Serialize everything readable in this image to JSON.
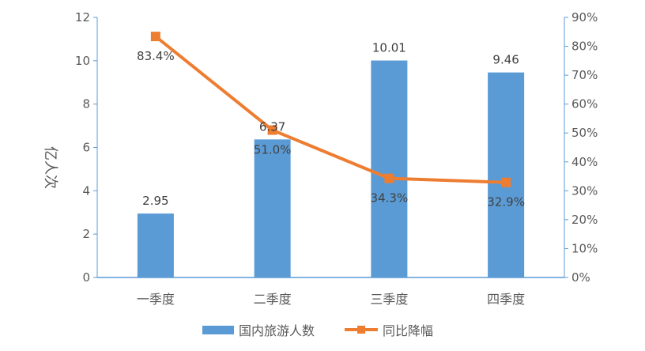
{
  "chart_data": {
    "type": "bar+line",
    "categories": [
      "一季度",
      "二季度",
      "三季度",
      "四季度"
    ],
    "series": [
      {
        "name": "国内旅游人数",
        "type": "bar",
        "axis": "left",
        "values": [
          2.95,
          6.37,
          10.01,
          9.46
        ],
        "labels": [
          "2.95",
          "6.37",
          "10.01",
          "9.46"
        ],
        "color": "#5b9bd5"
      },
      {
        "name": "同比降幅",
        "type": "line",
        "axis": "right",
        "values": [
          83.4,
          51.0,
          34.3,
          32.9
        ],
        "labels": [
          "83.4%",
          "51.0%",
          "34.3%",
          "32.9%"
        ],
        "color": "#ed7d31",
        "marker": "square"
      }
    ],
    "ylabel": "亿人次",
    "ylim": [
      0,
      12
    ],
    "yticks": [
      "0",
      "2",
      "4",
      "6",
      "8",
      "10",
      "12"
    ],
    "y2lim": [
      0,
      90
    ],
    "y2ticks": [
      "0%",
      "10%",
      "20%",
      "30%",
      "40%",
      "50%",
      "60%",
      "70%",
      "80%",
      "90%"
    ],
    "grid": false,
    "legend": "bottom",
    "axis_color": "#5b9bd5"
  }
}
